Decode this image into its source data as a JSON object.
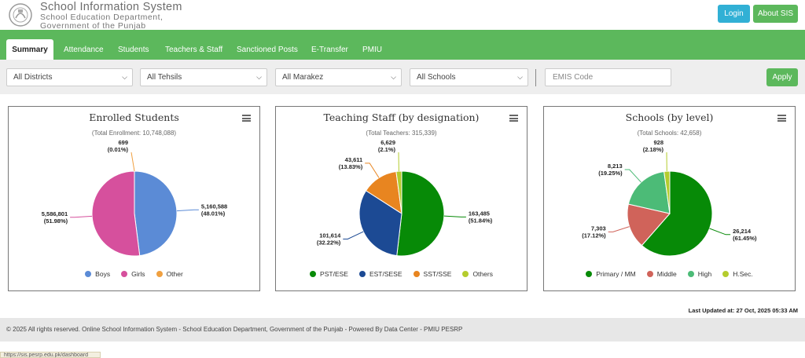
{
  "header": {
    "title": "School Information System",
    "subtitle1": "School Education Department,",
    "subtitle2": "Government of the Punjab",
    "login": "Login",
    "about": "About SIS"
  },
  "nav": {
    "tabs": [
      "Summary",
      "Attendance",
      "Students",
      "Teachers & Staff",
      "Sanctioned Posts",
      "E-Transfer",
      "PMIU"
    ],
    "active": "Summary"
  },
  "filters": {
    "districts": "All Districts",
    "tehsils": "All Tehsils",
    "marakez": "All Marakez",
    "schools": "All Schools",
    "emis_placeholder": "EMIS Code",
    "apply": "Apply"
  },
  "chart_data": [
    {
      "type": "pie",
      "title": "Enrolled Students",
      "subtitle": "(Total Enrollment: 10,748,088)",
      "slices": [
        {
          "name": "Boys",
          "value": 5160588,
          "label": "5,160,588",
          "pct": "(48.01%)",
          "color": "#5b8bd6"
        },
        {
          "name": "Girls",
          "value": 5586801,
          "label": "5,586,801",
          "pct": "(51.98%)",
          "color": "#d6509d"
        },
        {
          "name": "Other",
          "value": 699,
          "label": "699",
          "pct": "(0.01%)",
          "color": "#f0a040"
        }
      ]
    },
    {
      "type": "pie",
      "title": "Teaching Staff (by designation)",
      "subtitle": "(Total Teachers: 315,339)",
      "slices": [
        {
          "name": "PST/ESE",
          "value": 163485,
          "label": "163,485",
          "pct": "(51.84%)",
          "color": "#078a07"
        },
        {
          "name": "EST/SESE",
          "value": 101614,
          "label": "101,614",
          "pct": "(32.22%)",
          "color": "#1c4a94"
        },
        {
          "name": "SST/SSE",
          "value": 43611,
          "label": "43,611",
          "pct": "(13.83%)",
          "color": "#e88520"
        },
        {
          "name": "Others",
          "value": 6629,
          "label": "6,629",
          "pct": "(2.1%)",
          "color": "#b4cc2e"
        }
      ]
    },
    {
      "type": "pie",
      "title": "Schools (by level)",
      "subtitle": "(Total Schools: 42,658)",
      "slices": [
        {
          "name": "Primary / MM",
          "value": 26214,
          "label": "26,214",
          "pct": "(61.45%)",
          "color": "#078a07"
        },
        {
          "name": "Middle",
          "value": 7303,
          "label": "7,303",
          "pct": "(17.12%)",
          "color": "#d0635a"
        },
        {
          "name": "High",
          "value": 8213,
          "label": "8,213",
          "pct": "(19.25%)",
          "color": "#4cbb77"
        },
        {
          "name": "H.Sec.",
          "value": 928,
          "label": "928",
          "pct": "(2.18%)",
          "color": "#b4cc2e"
        }
      ]
    }
  ],
  "last_updated": "Last Updated at: 27 Oct, 2025 05:33 AM",
  "footer": "© 2025 All rights reserved. Online School Information System - School Education Department, Government of the Punjab - Powered By Data Center - PMIU PESRP",
  "status_url": "https://sis.pesrp.edu.pk/dashboard"
}
